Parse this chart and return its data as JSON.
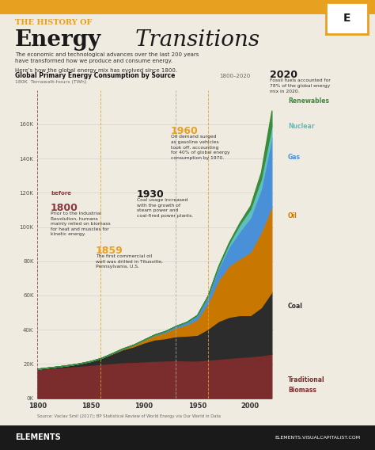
{
  "title_line1": "THE HISTORY OF",
  "title_line2_bold": "Energy",
  "title_line2_italic": "Transitions",
  "subtitle1": "The economic and technological advances over the last 200 years",
  "subtitle2": "have transformed how we produce and consume energy.",
  "subtitle3": "Here’s how the global energy mix has evolved since 1800.",
  "chart_title_bold": "Global Primary Energy Consumption by Source",
  "chart_title_light": "1800–2020",
  "chart_ylabel": "180K  Terrawatt-hours (TWh)",
  "years": [
    1800,
    1810,
    1820,
    1830,
    1840,
    1850,
    1860,
    1870,
    1880,
    1890,
    1900,
    1910,
    1920,
    1930,
    1940,
    1950,
    1960,
    1970,
    1980,
    1990,
    2000,
    2010,
    2020
  ],
  "biomass": [
    17000,
    17500,
    18000,
    18500,
    19000,
    19500,
    20000,
    20500,
    21000,
    21200,
    21500,
    21800,
    22000,
    22200,
    22000,
    22000,
    22500,
    23000,
    23500,
    24000,
    24500,
    25000,
    26000
  ],
  "coal": [
    200,
    400,
    600,
    900,
    1400,
    2200,
    3500,
    5500,
    7500,
    9000,
    11000,
    12500,
    13000,
    14000,
    14500,
    15000,
    18000,
    22000,
    24000,
    24500,
    24000,
    28000,
    36000
  ],
  "oil": [
    0,
    0,
    0,
    0,
    0,
    0,
    50,
    200,
    500,
    900,
    1500,
    2500,
    3500,
    5000,
    6500,
    9000,
    15000,
    24000,
    30000,
    33000,
    37000,
    44000,
    50000
  ],
  "gas": [
    0,
    0,
    0,
    0,
    0,
    0,
    0,
    0,
    50,
    100,
    200,
    400,
    700,
    1000,
    1500,
    2500,
    4000,
    7000,
    11000,
    16000,
    20000,
    25000,
    40000
  ],
  "nuclear": [
    0,
    0,
    0,
    0,
    0,
    0,
    0,
    0,
    0,
    0,
    0,
    0,
    0,
    0,
    0,
    50,
    200,
    900,
    2000,
    4000,
    5000,
    6000,
    7000
  ],
  "renewables": [
    0,
    0,
    0,
    0,
    0,
    0,
    0,
    0,
    0,
    0,
    0,
    0,
    0,
    0,
    50,
    100,
    200,
    400,
    700,
    1200,
    2000,
    4000,
    9000
  ],
  "colors": {
    "biomass": "#7B2D2D",
    "coal": "#2c2c2c",
    "oil": "#c87800",
    "gas": "#4a90d9",
    "nuclear": "#5dbfbf",
    "renewables": "#3a8c3a"
  },
  "bg_color": "#f0ebe0",
  "header_color": "#e8a020",
  "title_dark": "#1a1a1a",
  "footer_bg": "#1a1a1a",
  "source_text": "Source: Vaclav Smil (2017); BP Statistical Review of World Energy via Our World in Data",
  "footer_left": "ELEMENTS",
  "footer_right": "ELEMENTS.VISUALCAPITALIST.COM",
  "legend_labels": [
    "Renewables",
    "Nuclear",
    "Gas",
    "Oil",
    "Coal",
    "Traditional\nBiomass"
  ],
  "legend_colors": [
    "#3a8c3a",
    "#5dbfbf",
    "#4a90d9",
    "#c87800",
    "#2c2c2c",
    "#7B2D2D"
  ],
  "ylim": [
    0,
    180000
  ],
  "xlim": [
    1800,
    2022
  ]
}
